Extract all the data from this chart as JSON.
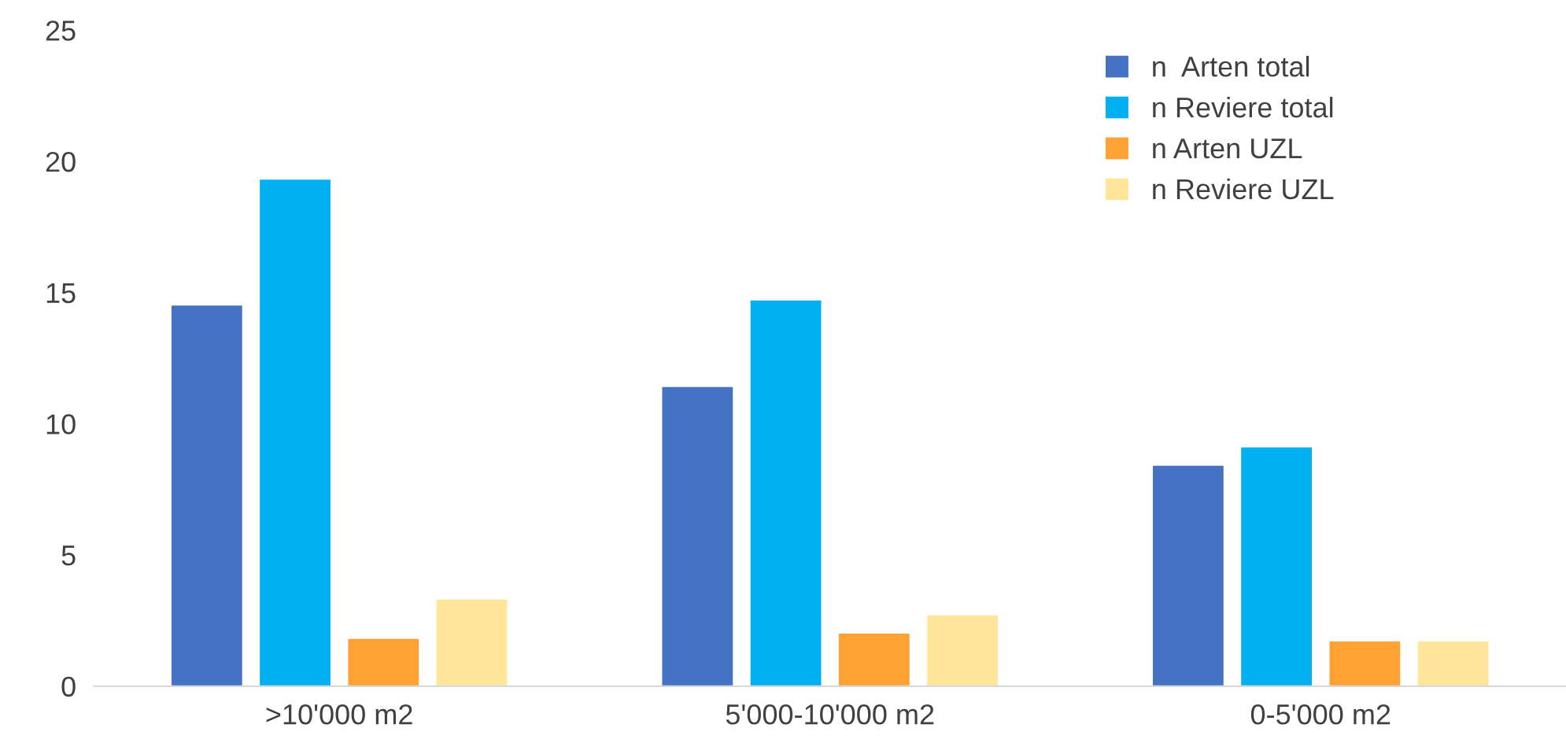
{
  "chart_data": {
    "type": "bar",
    "categories": [
      ">10'000 m2",
      "5'000-10'000 m2",
      "0-5'000 m2"
    ],
    "series": [
      {
        "name": "n  Arten total",
        "color": "#4472c4",
        "values": [
          14.5,
          11.4,
          8.4
        ]
      },
      {
        "name": "n Reviere total",
        "color": "#00b0f0",
        "values": [
          19.3,
          14.7,
          9.1
        ]
      },
      {
        "name": "n Arten UZL",
        "color": "#ffa133",
        "values": [
          1.8,
          2.0,
          1.7
        ]
      },
      {
        "name": "n Reviere UZL",
        "color": "#ffe699",
        "values": [
          3.3,
          2.7,
          1.7
        ]
      }
    ],
    "ylim": [
      0,
      25
    ],
    "yticks": [
      0,
      5,
      10,
      15,
      20,
      25
    ],
    "grid": false,
    "legend": "top right"
  }
}
